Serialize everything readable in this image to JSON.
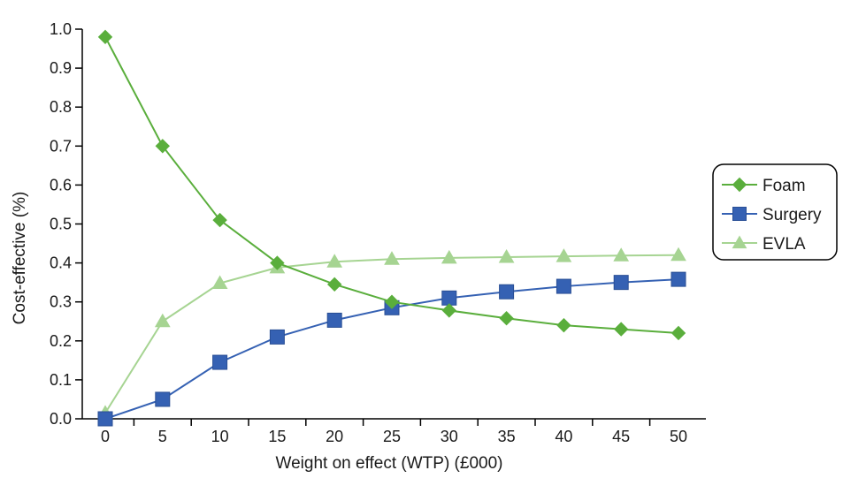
{
  "chart_data": {
    "type": "line",
    "xlabel": "Weight on effect (WTP) (£000)",
    "ylabel": "Cost-effective (%)",
    "x": [
      0,
      5,
      10,
      15,
      20,
      25,
      30,
      35,
      40,
      45,
      50
    ],
    "xticks": [
      "0",
      "5",
      "10",
      "15",
      "20",
      "25",
      "30",
      "35",
      "40",
      "45",
      "50"
    ],
    "ylim": [
      0,
      1.0
    ],
    "yticks": [
      "0.0",
      "0.1",
      "0.2",
      "0.3",
      "0.4",
      "0.5",
      "0.6",
      "0.7",
      "0.8",
      "0.9",
      "1.0"
    ],
    "grid": false,
    "legend_position": "right",
    "series": [
      {
        "name": "Foam",
        "marker": "diamond",
        "color": "#5aae3c",
        "values": [
          0.98,
          0.7,
          0.51,
          0.4,
          0.345,
          0.3,
          0.278,
          0.258,
          0.24,
          0.23,
          0.22
        ]
      },
      {
        "name": "Surgery",
        "marker": "square",
        "color": "#3561b3",
        "values": [
          0.0,
          0.05,
          0.145,
          0.21,
          0.253,
          0.285,
          0.31,
          0.326,
          0.34,
          0.35,
          0.358
        ]
      },
      {
        "name": "EVLA",
        "marker": "triangle",
        "color": "#a6d492",
        "values": [
          0.015,
          0.25,
          0.348,
          0.388,
          0.403,
          0.41,
          0.413,
          0.415,
          0.417,
          0.419,
          0.42
        ]
      }
    ]
  }
}
